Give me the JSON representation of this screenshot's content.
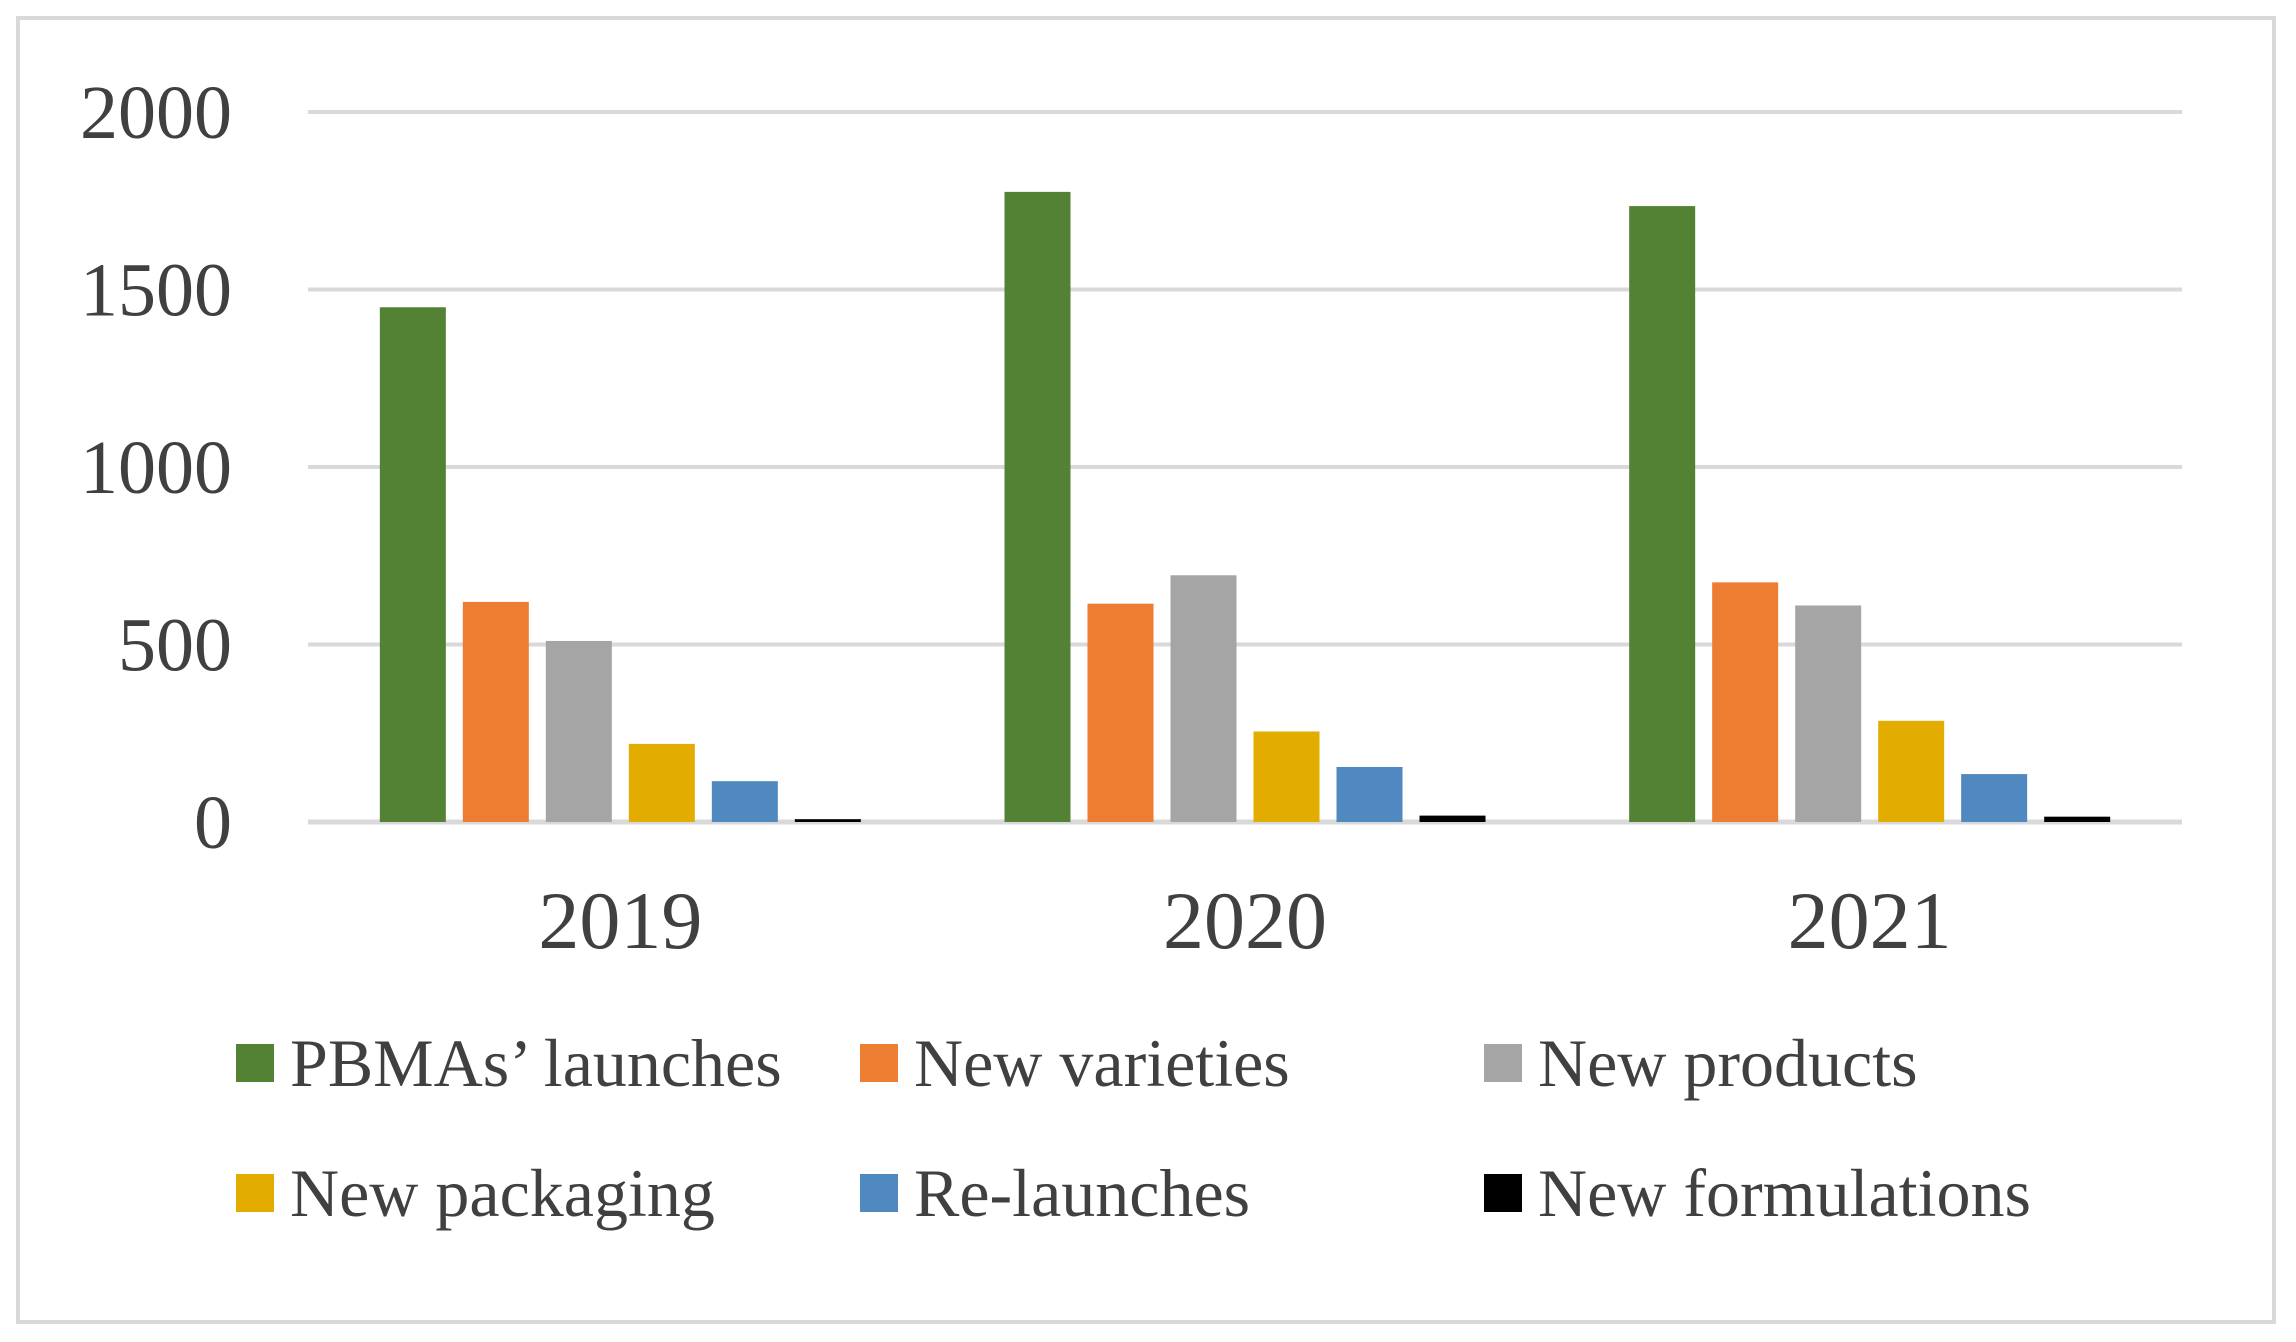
{
  "chart_data": {
    "type": "bar",
    "title": "",
    "xlabel": "",
    "ylabel": "",
    "ylim": [
      0,
      2000
    ],
    "yticks": [
      0,
      500,
      1000,
      1500,
      2000
    ],
    "grid": true,
    "legend_position": "bottom",
    "categories": [
      "2019",
      "2020",
      "2021"
    ],
    "series": [
      {
        "name": "PBMAs’ launches",
        "color": "#548235",
        "values": [
          1450,
          1775,
          1735
        ]
      },
      {
        "name": "New varieties",
        "color": "#ed7d31",
        "values": [
          620,
          615,
          675
        ]
      },
      {
        "name": "New products",
        "color": "#a5a5a5",
        "values": [
          510,
          695,
          610
        ]
      },
      {
        "name": "New packaging",
        "color": "#e2ac00",
        "values": [
          220,
          255,
          285
        ]
      },
      {
        "name": "Re-launches",
        "color": "#4f89c0",
        "values": [
          115,
          155,
          135
        ]
      },
      {
        "name": "New formulations",
        "color": "#000000",
        "values": [
          8,
          18,
          15
        ]
      }
    ]
  }
}
